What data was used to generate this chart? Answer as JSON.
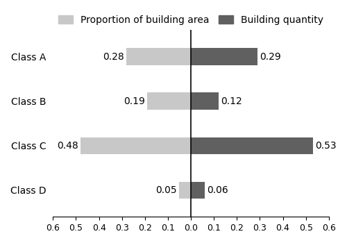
{
  "categories": [
    "Class A",
    "Class B",
    "Class C",
    "Class D"
  ],
  "proportion_values": [
    0.28,
    0.19,
    0.48,
    0.05
  ],
  "quantity_values": [
    0.29,
    0.12,
    0.53,
    0.06
  ],
  "proportion_color": "#c8c8c8",
  "quantity_color": "#606060",
  "proportion_label": "Proportion of building area",
  "quantity_label": "Building quantity",
  "xlim": [
    -0.6,
    0.6
  ],
  "xticks": [
    -0.6,
    -0.5,
    -0.4,
    -0.3,
    -0.2,
    -0.1,
    0.0,
    0.1,
    0.2,
    0.3,
    0.4,
    0.5,
    0.6
  ],
  "xtick_labels": [
    "0.6",
    "0.5",
    "0.4",
    "0.3",
    "0.2",
    "0.1",
    "0.0",
    "0.1",
    "0.2",
    "0.3",
    "0.4",
    "0.5",
    "0.6"
  ],
  "bar_height": 0.38,
  "label_fontsize": 10,
  "tick_fontsize": 9,
  "legend_fontsize": 10
}
